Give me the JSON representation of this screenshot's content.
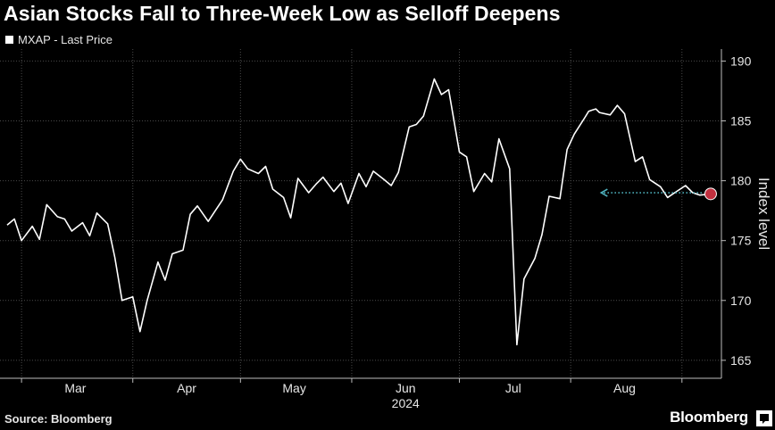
{
  "chart_data": {
    "type": "line",
    "title": "Asian Stocks Fall to Three-Week Low as Selloff Deepens",
    "series": [
      {
        "name": "MXAP - Last Price",
        "x": [
          "2024-02-26",
          "2024-02-28",
          "2024-03-01",
          "2024-03-04",
          "2024-03-06",
          "2024-03-08",
          "2024-03-11",
          "2024-03-13",
          "2024-03-15",
          "2024-03-18",
          "2024-03-20",
          "2024-03-22",
          "2024-03-25",
          "2024-03-27",
          "2024-03-29",
          "2024-04-01",
          "2024-04-03",
          "2024-04-05",
          "2024-04-08",
          "2024-04-10",
          "2024-04-12",
          "2024-04-15",
          "2024-04-17",
          "2024-04-19",
          "2024-04-22",
          "2024-04-24",
          "2024-04-26",
          "2024-04-29",
          "2024-05-01",
          "2024-05-03",
          "2024-05-06",
          "2024-05-08",
          "2024-05-10",
          "2024-05-13",
          "2024-05-15",
          "2024-05-17",
          "2024-05-20",
          "2024-05-22",
          "2024-05-24",
          "2024-05-27",
          "2024-05-29",
          "2024-05-31",
          "2024-06-03",
          "2024-06-05",
          "2024-06-07",
          "2024-06-10",
          "2024-06-12",
          "2024-06-14",
          "2024-06-17",
          "2024-06-19",
          "2024-06-21",
          "2024-06-24",
          "2024-06-26",
          "2024-06-28",
          "2024-07-01",
          "2024-07-03",
          "2024-07-05",
          "2024-07-08",
          "2024-07-10",
          "2024-07-12",
          "2024-07-15",
          "2024-07-17",
          "2024-07-19",
          "2024-07-22",
          "2024-07-24",
          "2024-07-26",
          "2024-07-29",
          "2024-07-31",
          "2024-08-02",
          "2024-08-05",
          "2024-08-06",
          "2024-08-07",
          "2024-08-08",
          "2024-08-09",
          "2024-08-12",
          "2024-08-14",
          "2024-08-16",
          "2024-08-19",
          "2024-08-21",
          "2024-08-23",
          "2024-08-26",
          "2024-08-28",
          "2024-08-30",
          "2024-09-02",
          "2024-09-04",
          "2024-09-06",
          "2024-09-09"
        ],
        "values": [
          176.3,
          176.8,
          175.0,
          176.2,
          175.1,
          178.0,
          177.0,
          176.8,
          175.8,
          176.5,
          175.4,
          177.3,
          176.4,
          173.6,
          170.0,
          170.3,
          167.4,
          170.0,
          173.2,
          171.7,
          173.9,
          174.2,
          177.2,
          177.9,
          176.6,
          177.5,
          178.4,
          180.8,
          181.8,
          181.0,
          180.6,
          181.2,
          179.3,
          178.6,
          176.9,
          180.2,
          179.0,
          179.7,
          180.3,
          179.1,
          179.8,
          178.1,
          180.6,
          179.5,
          180.8,
          180.1,
          179.6,
          180.7,
          184.5,
          184.7,
          185.4,
          188.5,
          187.2,
          187.6,
          182.4,
          182.0,
          179.1,
          180.6,
          179.9,
          183.5,
          181.0,
          166.3,
          171.8,
          173.5,
          175.5,
          178.7,
          178.5,
          182.6,
          183.9,
          185.3,
          185.8,
          185.9,
          186.0,
          185.7,
          185.5,
          186.3,
          185.6,
          181.6,
          182.0,
          180.1,
          179.5,
          178.6,
          179.0,
          179.6,
          179.0,
          178.8,
          178.9
        ],
        "color": "#ffffff"
      }
    ],
    "y_axis": {
      "label": "Index level",
      "ticks": [
        165,
        170,
        175,
        180,
        185,
        190
      ],
      "ylim": [
        163.5,
        191
      ],
      "position": "right"
    },
    "x_axis": {
      "tick_labels": [
        "Mar",
        "Apr",
        "May",
        "Jun",
        "Jul",
        "Aug"
      ],
      "year_label": "2024"
    },
    "grid": true,
    "legend_position": "top-left",
    "annotation": {
      "type": "arrow",
      "color": "#4fb3bf",
      "from_value": 179.0,
      "endpoint_marker_color": "#c0303f"
    }
  },
  "footer": {
    "source": "Source: Bloomberg",
    "brand": "Bloomberg"
  }
}
